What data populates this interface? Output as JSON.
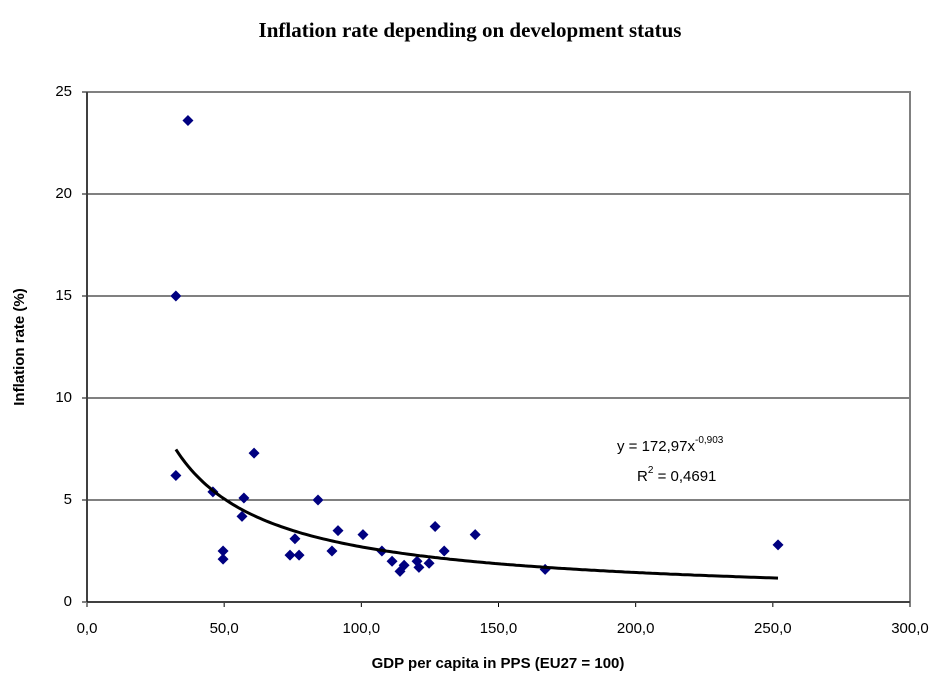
{
  "chart_data": {
    "type": "scatter",
    "title": "Inflation rate depending on development status",
    "x_label": "GDP per capita in PPS (EU27 = 100)",
    "y_label": "Inflation rate (%)",
    "x": [
      36.8,
      32.4,
      32.4,
      45.9,
      49.6,
      49.6,
      56.5,
      57.2,
      60.9,
      74.0,
      75.8,
      77.3,
      84.2,
      89.3,
      91.5,
      100.6,
      107.5,
      111.2,
      114.1,
      115.6,
      120.3,
      121.0,
      124.7,
      126.9,
      130.2,
      141.5,
      167.0,
      251.9
    ],
    "values": [
      23.6,
      15.0,
      6.2,
      5.4,
      2.5,
      2.1,
      4.2,
      5.1,
      7.3,
      2.3,
      3.1,
      2.3,
      5.0,
      2.5,
      3.5,
      3.3,
      2.5,
      2.0,
      1.5,
      1.8,
      2.0,
      1.7,
      1.9,
      3.7,
      2.5,
      3.3,
      1.6,
      2.8
    ],
    "color": "#000080",
    "xlim": [
      0,
      300
    ],
    "ylim": [
      0,
      25
    ],
    "xticks": [
      {
        "value": 0,
        "label": "0,0"
      },
      {
        "value": 50,
        "label": "50,0"
      },
      {
        "value": 100,
        "label": "100,0"
      },
      {
        "value": 150,
        "label": "150,0"
      },
      {
        "value": 200,
        "label": "200,0"
      },
      {
        "value": 250,
        "label": "250,0"
      },
      {
        "value": 300,
        "label": "300,0"
      }
    ],
    "yticks": [
      0,
      5,
      10,
      15,
      20,
      25
    ],
    "grid": true,
    "trendline": {
      "type": "power",
      "coefficient": 172.97,
      "exponent": -0.903,
      "color": "#000000",
      "equation": "y = 172,97x",
      "equation_exponent": "-0,903",
      "r_squared_label": "R",
      "r_squared_sup": "2",
      "r_squared_value": " = 0,4691"
    }
  }
}
